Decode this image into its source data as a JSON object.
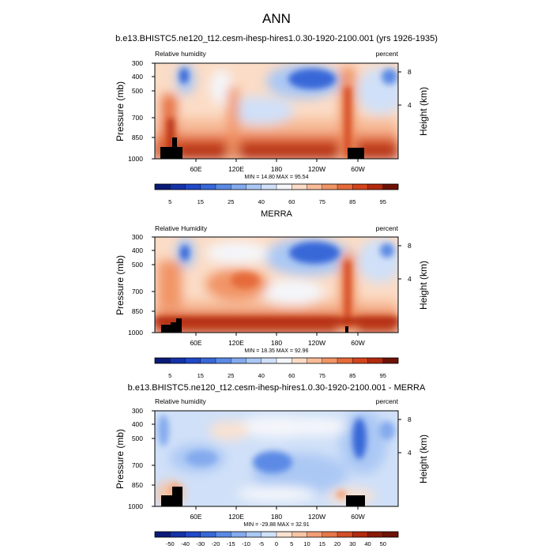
{
  "figure": {
    "title": "ANN"
  },
  "chart_data": [
    {
      "type": "heatmap",
      "title": "b.e13.BHISTC5.ne120_t12.cesm-ihesp-hires1.0.30-1920-2100.001 (yrs 1926-1935)",
      "left_label": "Relative humidity",
      "right_label": "percent",
      "ylabel": "Pressure (mb)",
      "ylabel_right": "Height (km)",
      "x_ticks": [
        "60E",
        "120E",
        "180",
        "120W",
        "60W"
      ],
      "x_values": [
        60,
        120,
        180,
        240,
        300
      ],
      "xlim": [
        0,
        360
      ],
      "y_ticks": [
        "300",
        "400",
        "500",
        "700",
        "850",
        "1000"
      ],
      "y_values": [
        300,
        400,
        500,
        700,
        850,
        1000
      ],
      "ylim": [
        1000,
        300
      ],
      "y_scale": "log",
      "y_right_ticks": [
        "4",
        "8"
      ],
      "y_right_values": [
        4,
        8
      ],
      "stats": "MIN = 14.80 MAX = 95.54",
      "min": 14.8,
      "max": 95.54,
      "colorbar": {
        "labels": [
          "5",
          "15",
          "25",
          "40",
          "60",
          "75",
          "85",
          "95"
        ],
        "levels": [
          5,
          10,
          15,
          20,
          25,
          30,
          40,
          50,
          60,
          70,
          75,
          80,
          85,
          90,
          95
        ],
        "colors": [
          "#0a1a78",
          "#1532a8",
          "#2148c8",
          "#3868d8",
          "#5b8ae5",
          "#84aaee",
          "#abc8f4",
          "#d0e0f8",
          "#f4f6fa",
          "#fbdcc6",
          "#f7bb98",
          "#f19466",
          "#e56a3a",
          "#d2441c",
          "#b32a0e",
          "#6e1206"
        ]
      }
    },
    {
      "type": "heatmap",
      "title": "MERRA",
      "left_label": "Relative Humidity",
      "right_label": "percent",
      "ylabel": "Pressure (mb)",
      "ylabel_right": "Height (km)",
      "x_ticks": [
        "60E",
        "120E",
        "180",
        "120W",
        "60W"
      ],
      "x_values": [
        60,
        120,
        180,
        240,
        300
      ],
      "xlim": [
        0,
        360
      ],
      "y_ticks": [
        "300",
        "400",
        "500",
        "700",
        "850",
        "1000"
      ],
      "y_values": [
        300,
        400,
        500,
        700,
        850,
        1000
      ],
      "ylim": [
        1000,
        300
      ],
      "y_scale": "log",
      "y_right_ticks": [
        "4",
        "8"
      ],
      "y_right_values": [
        4,
        8
      ],
      "stats": "MIN = 18.35 MAX = 92.96",
      "min": 18.35,
      "max": 92.96,
      "colorbar": {
        "labels": [
          "5",
          "15",
          "25",
          "40",
          "60",
          "75",
          "85",
          "95"
        ],
        "levels": [
          5,
          10,
          15,
          20,
          25,
          30,
          40,
          50,
          60,
          70,
          75,
          80,
          85,
          90,
          95
        ],
        "colors": [
          "#0a1a78",
          "#1532a8",
          "#2148c8",
          "#3868d8",
          "#5b8ae5",
          "#84aaee",
          "#abc8f4",
          "#d0e0f8",
          "#f4f6fa",
          "#fbdcc6",
          "#f7bb98",
          "#f19466",
          "#e56a3a",
          "#d2441c",
          "#b32a0e",
          "#6e1206"
        ]
      }
    },
    {
      "type": "heatmap",
      "title": "b.e13.BHISTC5.ne120_t12.cesm-ihesp-hires1.0.30-1920-2100.001 - MERRA",
      "left_label": "Relative humidity",
      "right_label": "percent",
      "ylabel": "Pressure (mb)",
      "ylabel_right": "Height (km)",
      "x_ticks": [
        "60E",
        "120E",
        "180",
        "120W",
        "60W"
      ],
      "x_values": [
        60,
        120,
        180,
        240,
        300
      ],
      "xlim": [
        0,
        360
      ],
      "y_ticks": [
        "300",
        "400",
        "500",
        "700",
        "850",
        "1000"
      ],
      "y_values": [
        300,
        400,
        500,
        700,
        850,
        1000
      ],
      "ylim": [
        1000,
        300
      ],
      "y_scale": "log",
      "y_right_ticks": [
        "4",
        "8"
      ],
      "y_right_values": [
        4,
        8
      ],
      "stats": "MIN = -29.88 MAX = 32.91",
      "min": -29.88,
      "max": 32.91,
      "colorbar": {
        "labels": [
          "-50",
          "-40",
          "-30",
          "-20",
          "-15",
          "-10",
          "-5",
          "0",
          "5",
          "10",
          "15",
          "20",
          "30",
          "40",
          "50"
        ],
        "levels": [
          -50,
          -40,
          -30,
          -20,
          -15,
          -10,
          -5,
          0,
          5,
          10,
          15,
          20,
          30,
          40,
          50
        ],
        "colors": [
          "#0a1a78",
          "#1532a8",
          "#2148c8",
          "#3868d8",
          "#5b8ae5",
          "#84aaee",
          "#abc8f4",
          "#d0e0f8",
          "#fbe2d0",
          "#f7c4a4",
          "#f19e76",
          "#e57748",
          "#d24e24",
          "#b32a0e",
          "#8a1a08",
          "#6e1206"
        ]
      }
    }
  ]
}
